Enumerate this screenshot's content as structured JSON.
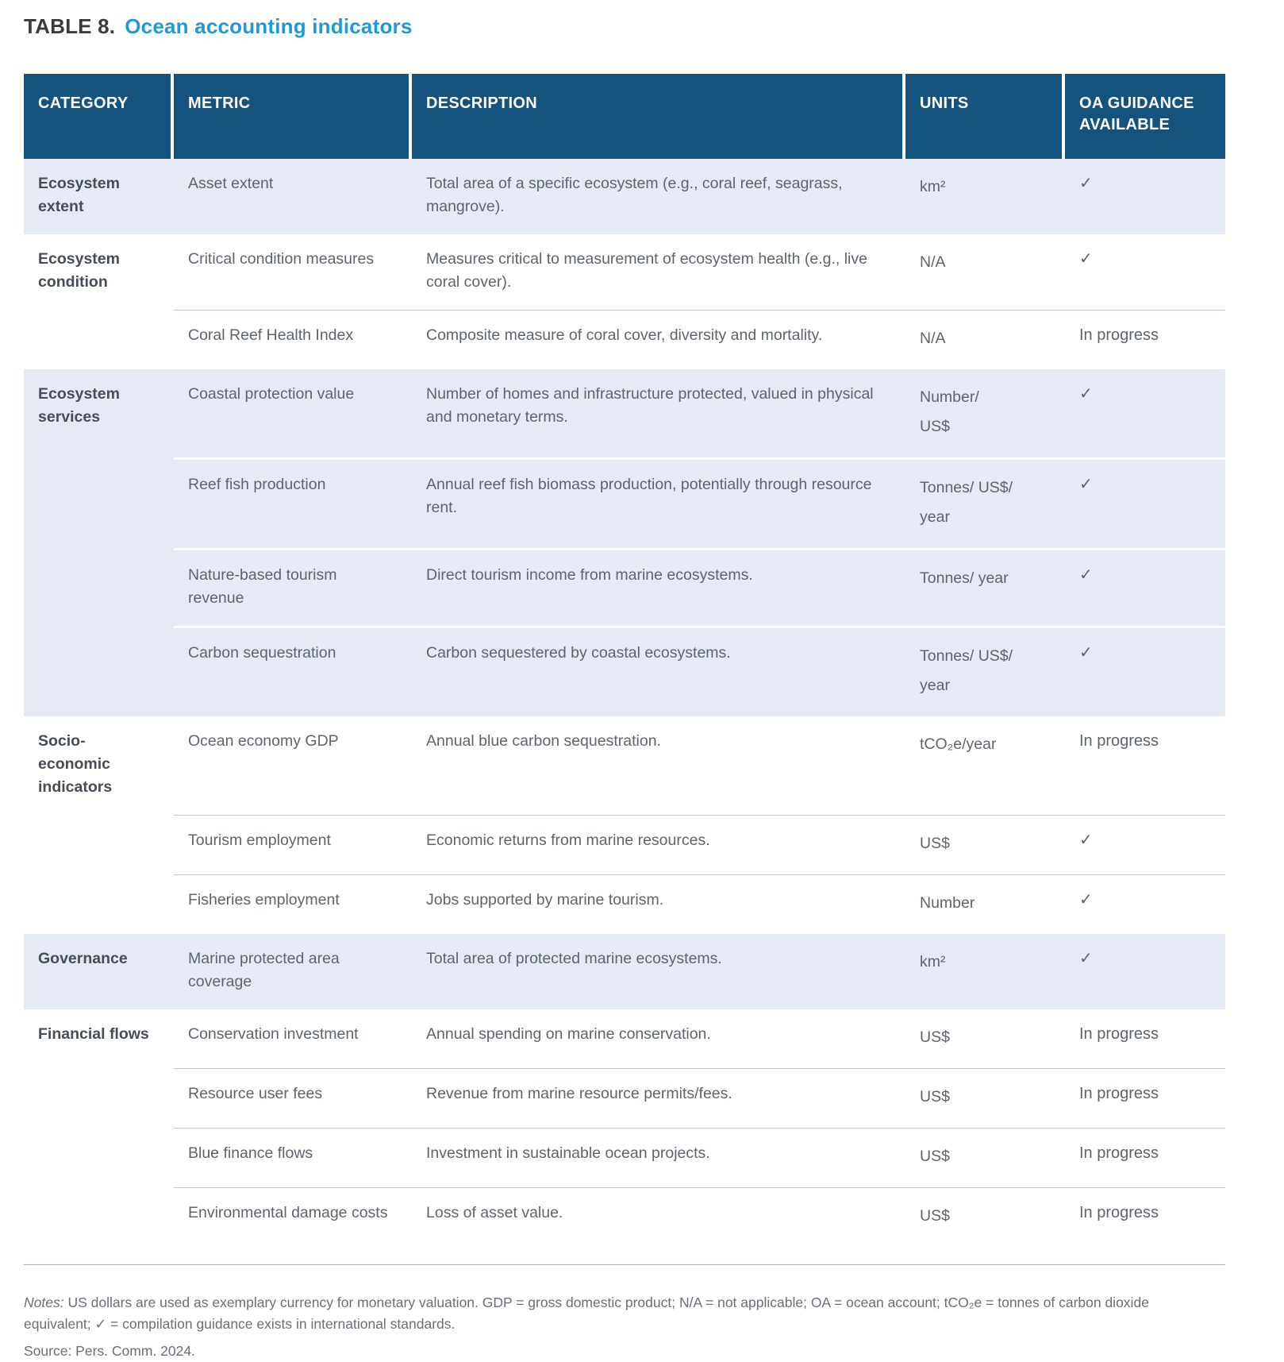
{
  "title": {
    "label": "TABLE 8.",
    "text": "Ocean accounting indicators"
  },
  "colors": {
    "header_bg": "#14537e",
    "band_bg": "#e5eaf5",
    "title_accent": "#1e9bd7"
  },
  "table": {
    "headers": [
      "CATEGORY",
      "METRIC",
      "DESCRIPTION",
      "UNITS",
      "OA GUIDANCE AVAILABLE"
    ],
    "groups": [
      {
        "category": "Ecosystem extent",
        "rows": [
          {
            "metric": "Asset extent",
            "description": "Total area of a specific ecosystem (e.g., coral reef, seagrass, mangrove).",
            "units": "km²",
            "guidance": "✓"
          }
        ]
      },
      {
        "category": "Ecosystem condition",
        "rows": [
          {
            "metric": "Critical condition measures",
            "description": "Measures critical to measurement of ecosystem health (e.g., live coral cover).",
            "units": "N/A",
            "guidance": "✓"
          },
          {
            "metric": "Coral Reef Health Index",
            "description": "Composite measure of coral cover, diversity and mortality.",
            "units": "N/A",
            "guidance": "In progress"
          }
        ]
      },
      {
        "category": "Ecosystem services",
        "rows": [
          {
            "metric": "Coastal protection value",
            "description": "Number of homes and infrastructure protected, valued in physical and monetary terms.",
            "units": "Number/\nUS$",
            "guidance": "✓"
          },
          {
            "metric": "Reef fish production",
            "description": "Annual reef fish biomass production, potentially through resource rent.",
            "units": "Tonnes/ US$/\nyear",
            "guidance": "✓"
          },
          {
            "metric": "Nature-based tourism revenue",
            "description": "Direct tourism income from marine ecosystems.",
            "units": "Tonnes/ year",
            "guidance": "✓"
          },
          {
            "metric": "Carbon sequestration",
            "description": "Carbon sequestered by coastal ecosystems.",
            "units": "Tonnes/ US$/\nyear",
            "guidance": "✓"
          }
        ]
      },
      {
        "category": "Socio-economic indicators",
        "rows": [
          {
            "metric": "Ocean economy GDP",
            "description": "Annual blue carbon sequestration.",
            "units": "tCO₂e/year",
            "guidance": "In progress"
          },
          {
            "metric": "Tourism employment",
            "description": "Economic returns from marine resources.",
            "units": "US$",
            "guidance": "✓"
          },
          {
            "metric": "Fisheries employment",
            "description": "Jobs supported by marine tourism.",
            "units": "Number",
            "guidance": "✓"
          }
        ]
      },
      {
        "category": "Governance",
        "rows": [
          {
            "metric": "Marine protected area coverage",
            "description": "Total area of protected marine ecosystems.",
            "units": "km²",
            "guidance": "✓"
          }
        ]
      },
      {
        "category": "Financial flows",
        "rows": [
          {
            "metric": "Conservation investment",
            "description": "Annual spending on marine conservation.",
            "units": "US$",
            "guidance": "In progress"
          },
          {
            "metric": "Resource user fees",
            "description": "Revenue from marine resource permits/fees.",
            "units": "US$",
            "guidance": "In progress"
          },
          {
            "metric": "Blue finance flows",
            "description": "Investment in sustainable ocean projects.",
            "units": "US$",
            "guidance": "In progress"
          },
          {
            "metric": "Environmental damage costs",
            "description": "Loss of asset value.",
            "units": "US$",
            "guidance": "In progress"
          }
        ]
      }
    ]
  },
  "footer": {
    "notes_label": "Notes:",
    "notes_text": " US dollars are used as exemplary currency for monetary valuation. GDP = gross domestic product; N/A = not applicable; OA = ocean account; tCO₂e = tonnes of carbon dioxide equivalent; ✓ = compilation guidance exists in international standards.",
    "source_label": "Source:",
    "source_text": " Pers. Comm. 2024."
  }
}
